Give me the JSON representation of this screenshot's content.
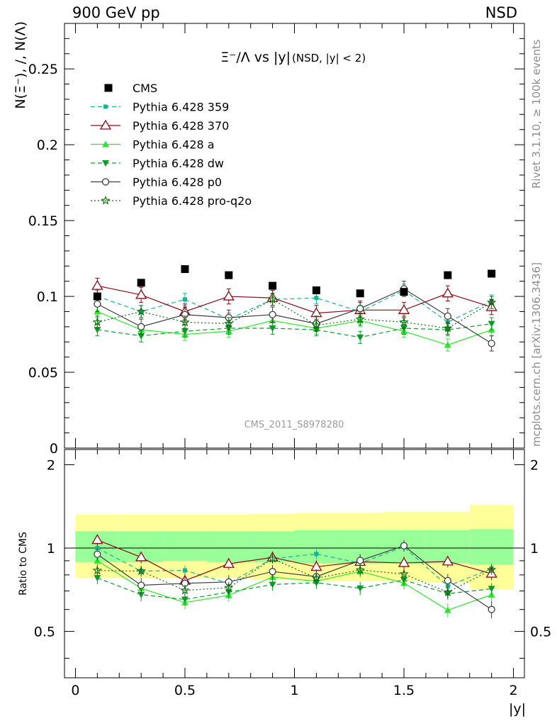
{
  "header": {
    "left": "900 GeV pp",
    "right": "NSD"
  },
  "side_labels": {
    "rivet": "Rivet 3.1.10, ≥ 100k events",
    "mcplots": "mcplots.cern.ch [arXiv:1306.3436]"
  },
  "watermark": "CMS_2011_S8978280",
  "chart_data": {
    "type": "line",
    "title_main": "Ξ⁻/Λ vs |y|",
    "title_sub": "(NSD, |y| < 2)",
    "ylabel": "N(Ξ⁻), /, N(Λ)",
    "xlabel": "|y|",
    "ratio_ylabel": "Ratio to CMS",
    "xlim": [
      -0.05,
      2.05
    ],
    "ylim": [
      0,
      0.28
    ],
    "ratio_ylim": [
      0.34,
      2.27
    ],
    "x": [
      0.1,
      0.3,
      0.5,
      0.7,
      0.9,
      1.1,
      1.3,
      1.5,
      1.7,
      1.9
    ],
    "x_ticks": [
      "0",
      "0.5",
      "1",
      "1.5",
      "2"
    ],
    "y_ticks": [
      "0",
      "0.05",
      "0.1",
      "0.15",
      "0.2",
      "0.25"
    ],
    "ratio_y_ticks": [
      "0.5",
      "1",
      "2"
    ],
    "reference": {
      "name": "CMS",
      "values": [
        0.1,
        0.109,
        0.118,
        0.114,
        0.107,
        0.104,
        0.102,
        0.103,
        0.114,
        0.115
      ],
      "band_inner": [
        [
          0.89,
          1.15
        ],
        [
          0.89,
          1.15
        ],
        [
          0.9,
          1.15
        ],
        [
          0.89,
          1.15
        ],
        [
          0.89,
          1.15
        ],
        [
          0.88,
          1.16
        ],
        [
          0.88,
          1.16
        ],
        [
          0.88,
          1.16
        ],
        [
          0.88,
          1.16
        ],
        [
          0.87,
          1.17
        ]
      ],
      "band_outer": [
        [
          0.78,
          1.32
        ],
        [
          0.78,
          1.32
        ],
        [
          0.78,
          1.32
        ],
        [
          0.78,
          1.32
        ],
        [
          0.77,
          1.33
        ],
        [
          0.76,
          1.34
        ],
        [
          0.76,
          1.34
        ],
        [
          0.76,
          1.35
        ],
        [
          0.75,
          1.35
        ],
        [
          0.71,
          1.43
        ]
      ]
    },
    "series": [
      {
        "name": "Pythia 6.428 359",
        "color": "#18b490",
        "dash": "6,4",
        "marker": "square-small",
        "values": [
          0.1,
          0.09,
          0.098,
          0.085,
          0.098,
          0.099,
          0.09,
          0.104,
          0.083,
          0.097
        ],
        "err": 0.004
      },
      {
        "name": "Pythia 6.428 370",
        "color": "#8b0a14",
        "dash": "",
        "marker": "triangle-open",
        "values": [
          0.107,
          0.101,
          0.09,
          0.1,
          0.099,
          0.089,
          0.091,
          0.091,
          0.102,
          0.093
        ],
        "err": 0.005
      },
      {
        "name": "Pythia 6.428 a",
        "color": "#2de52d",
        "dash": "",
        "marker": "triangle",
        "values": [
          0.09,
          0.078,
          0.075,
          0.077,
          0.084,
          0.079,
          0.084,
          0.077,
          0.068,
          0.078
        ],
        "err": 0.004
      },
      {
        "name": "Pythia 6.428 dw",
        "color": "#0d9a2a",
        "dash": "6,4",
        "marker": "triangle-down",
        "values": [
          0.078,
          0.074,
          0.077,
          0.079,
          0.079,
          0.078,
          0.073,
          0.079,
          0.078,
          0.082
        ],
        "err": 0.004
      },
      {
        "name": "Pythia 6.428 p0",
        "color": "#3d3d3d",
        "dash": "",
        "marker": "circle-open",
        "values": [
          0.095,
          0.08,
          0.088,
          0.086,
          0.088,
          0.082,
          0.092,
          0.105,
          0.087,
          0.069
        ],
        "err": 0.005
      },
      {
        "name": "Pythia 6.428 pro-q2o",
        "color": "#0f6b0f",
        "dash": "2,3",
        "marker": "star",
        "values": [
          0.083,
          0.09,
          0.083,
          0.082,
          0.098,
          0.081,
          0.085,
          0.083,
          0.079,
          0.096
        ],
        "err": 0.004
      }
    ],
    "legend": "top-left",
    "grid": false
  }
}
